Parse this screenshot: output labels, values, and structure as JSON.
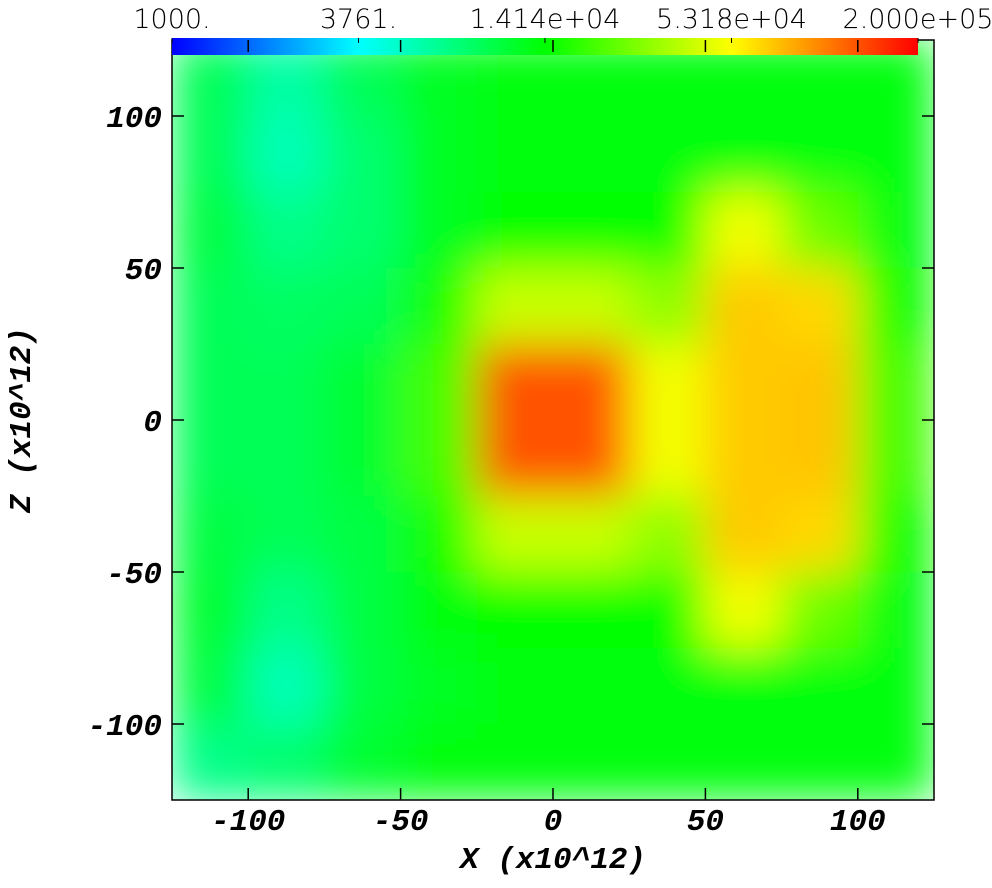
{
  "chart_data": {
    "type": "heatmap",
    "x_label": "X  (x10^12)",
    "y_label": "Z  (x10^12)",
    "xlim": [
      -125,
      125
    ],
    "ylim": [
      -125,
      125
    ],
    "xticks": [
      -100,
      -50,
      0,
      50,
      100
    ],
    "yticks": [
      -100,
      -50,
      0,
      50,
      100
    ],
    "x": [
      -112.5,
      -87.5,
      -62.5,
      -37.5,
      -12.5,
      12.5,
      37.5,
      62.5,
      87.5,
      112.5
    ],
    "y": [
      112.5,
      87.5,
      62.5,
      37.5,
      12.5,
      -12.5,
      -37.5,
      -62.5,
      -87.5,
      -112.5
    ],
    "values": [
      [
        9000,
        6000,
        9000,
        12000,
        13000,
        13000,
        13000,
        13000,
        13000,
        13000
      ],
      [
        9000,
        5500,
        8000,
        12000,
        13000,
        13000,
        13000,
        13000,
        13000,
        13000
      ],
      [
        10000,
        7000,
        8000,
        12000,
        14000,
        14000,
        14000,
        50000,
        25000,
        13000
      ],
      [
        9000,
        8500,
        9000,
        16000,
        40000,
        40000,
        30000,
        70000,
        65000,
        15000
      ],
      [
        9000,
        9000,
        11000,
        20000,
        130000,
        130000,
        50000,
        70000,
        72000,
        20000
      ],
      [
        9000,
        9000,
        11000,
        20000,
        130000,
        130000,
        50000,
        70000,
        72000,
        20000
      ],
      [
        10000,
        9000,
        10000,
        16000,
        40000,
        40000,
        30000,
        70000,
        65000,
        15000
      ],
      [
        11000,
        7000,
        10000,
        13000,
        14000,
        14000,
        14000,
        50000,
        25000,
        13000
      ],
      [
        10000,
        5500,
        10000,
        12000,
        13000,
        13000,
        13000,
        13000,
        13000,
        13000
      ],
      [
        7000,
        8000,
        11000,
        13000,
        13000,
        13000,
        13000,
        13000,
        13000,
        13000
      ]
    ],
    "colorbar": {
      "scale": "log",
      "lim": [
        1000,
        200000
      ],
      "ticks": [
        {
          "value": 1000,
          "label": "1000."
        },
        {
          "value": 3761,
          "label": "3761."
        },
        {
          "value": 14140,
          "label": "1.414e+04"
        },
        {
          "value": 53180,
          "label": "5.318e+04"
        },
        {
          "value": 200000,
          "label": "2.000e+05"
        }
      ],
      "colors": [
        "#0000ff",
        "#00ffff",
        "#00ff00",
        "#ffff00",
        "#ff0000"
      ]
    }
  }
}
